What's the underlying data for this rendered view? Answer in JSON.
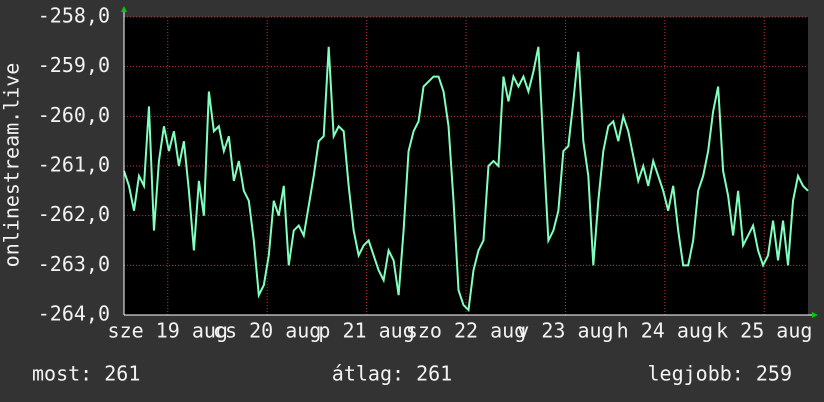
{
  "chart_data": {
    "type": "line",
    "y_axis_label": "onlinestream.live",
    "xlim": [
      18.56,
      25.44
    ],
    "xticks": [
      {
        "value": 19,
        "label": "sze 19 aug"
      },
      {
        "value": 20,
        "label": "cs 20 aug"
      },
      {
        "value": 21,
        "label": "p 21 aug"
      },
      {
        "value": 22,
        "label": "szo 22 aug"
      },
      {
        "value": 23,
        "label": "v 23 aug"
      },
      {
        "value": 24,
        "label": "h 24 aug"
      },
      {
        "value": 25,
        "label": "k 25 aug"
      }
    ],
    "ylim": [
      -264,
      -258
    ],
    "yticks": [
      {
        "value": -258,
        "label": "-258,0"
      },
      {
        "value": -259,
        "label": "-259,0"
      },
      {
        "value": -260,
        "label": "-260,0"
      },
      {
        "value": -261,
        "label": "-261,0"
      },
      {
        "value": -262,
        "label": "-262,0"
      },
      {
        "value": -263,
        "label": "-263,0"
      },
      {
        "value": -264,
        "label": "-264,0"
      }
    ],
    "grid": true,
    "color": "#80ffbf",
    "values": [
      -261.1,
      -261.4,
      -261.9,
      -261.2,
      -261.4,
      -259.8,
      -262.3,
      -260.9,
      -260.2,
      -260.7,
      -260.3,
      -261.0,
      -260.5,
      -261.5,
      -262.7,
      -261.3,
      -262.0,
      -259.5,
      -260.3,
      -260.2,
      -260.7,
      -260.4,
      -261.3,
      -260.9,
      -261.5,
      -261.7,
      -262.5,
      -263.6,
      -263.4,
      -262.8,
      -261.7,
      -262.0,
      -261.4,
      -263.0,
      -262.3,
      -262.2,
      -262.4,
      -261.8,
      -261.2,
      -260.5,
      -260.4,
      -258.6,
      -260.4,
      -260.2,
      -260.3,
      -261.4,
      -262.3,
      -262.8,
      -262.6,
      -262.5,
      -262.8,
      -263.1,
      -263.3,
      -262.7,
      -262.9,
      -263.6,
      -262.3,
      -260.7,
      -260.3,
      -260.1,
      -259.4,
      -259.3,
      -259.2,
      -259.2,
      -259.5,
      -260.2,
      -261.7,
      -263.5,
      -263.8,
      -263.9,
      -263.1,
      -262.7,
      -262.5,
      -261.0,
      -260.9,
      -261.0,
      -259.2,
      -259.7,
      -259.2,
      -259.4,
      -259.2,
      -259.5,
      -259.1,
      -258.6,
      -260.6,
      -262.5,
      -262.3,
      -261.9,
      -260.7,
      -260.6,
      -259.7,
      -258.7,
      -260.5,
      -261.2,
      -263.0,
      -261.7,
      -260.7,
      -260.2,
      -260.1,
      -260.5,
      -260.0,
      -260.3,
      -260.8,
      -261.3,
      -261.0,
      -261.4,
      -260.9,
      -261.2,
      -261.5,
      -261.9,
      -261.4,
      -262.3,
      -263.0,
      -263.0,
      -262.5,
      -261.5,
      -261.2,
      -260.7,
      -259.9,
      -259.4,
      -261.1,
      -261.6,
      -262.4,
      -261.5,
      -262.6,
      -262.4,
      -262.2,
      -262.7,
      -263.0,
      -262.8,
      -262.1,
      -262.9,
      -262.1,
      -263.0,
      -261.7,
      -261.2,
      -261.4,
      -261.5
    ],
    "legend": {
      "current": "most: 261",
      "average": "átlag: 261",
      "best": "legjobb: 259"
    }
  }
}
